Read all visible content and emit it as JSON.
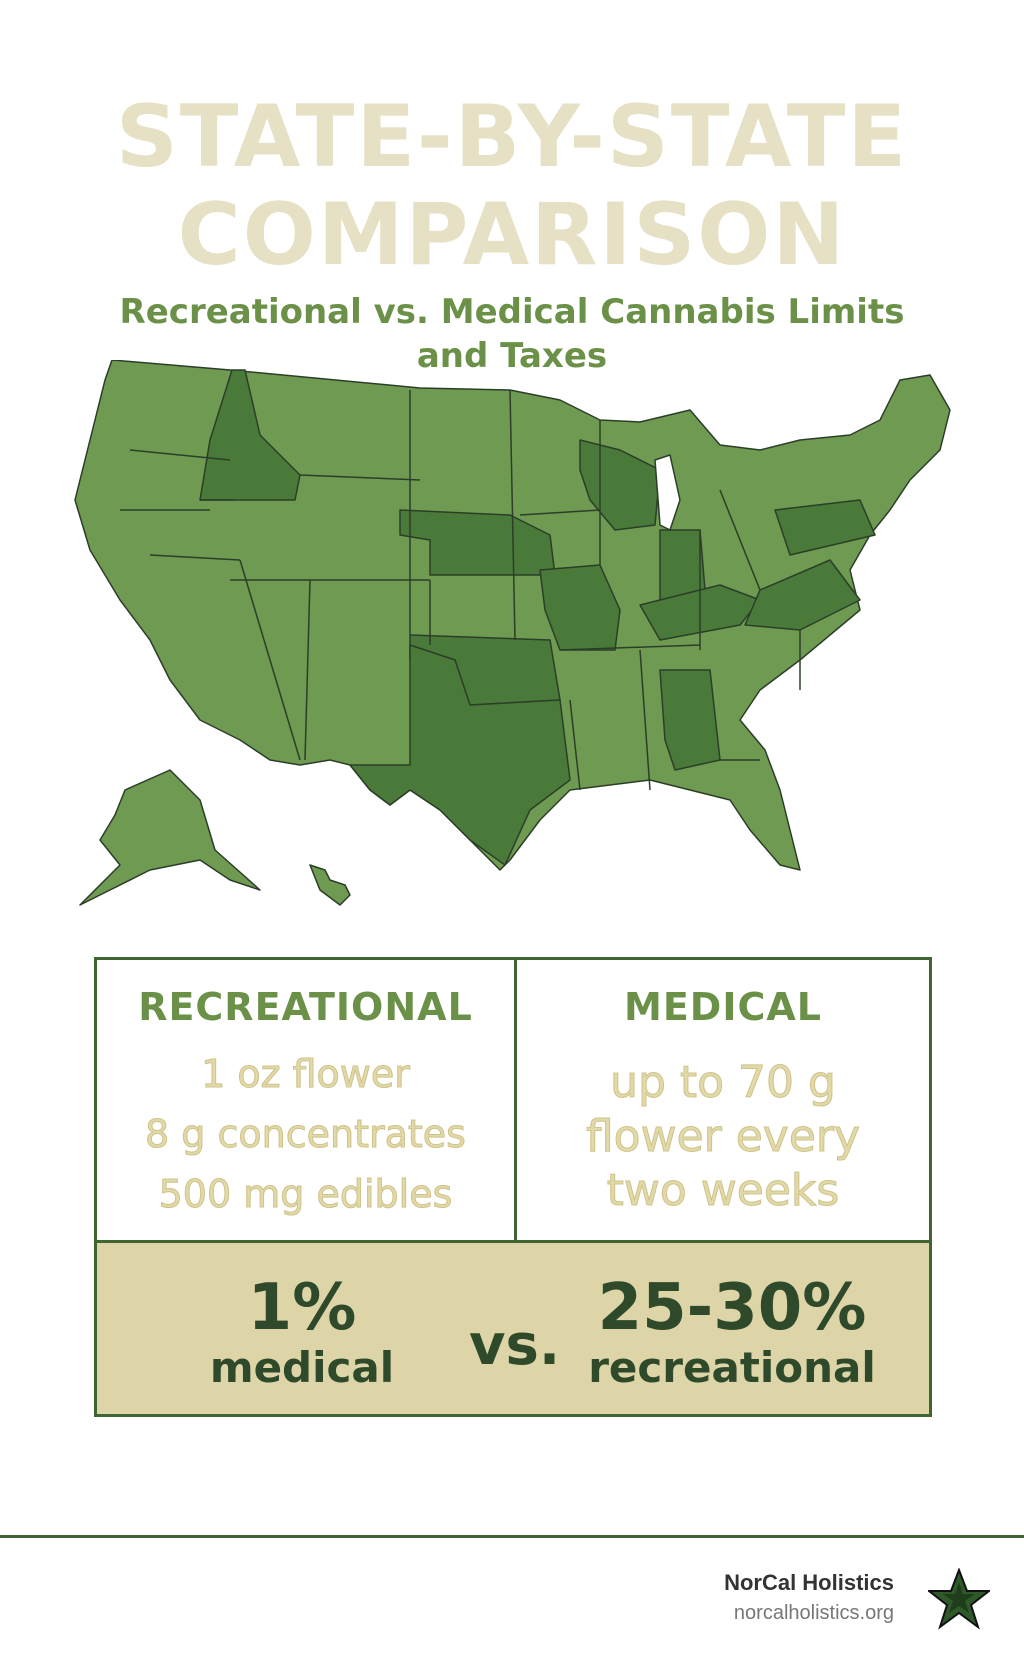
{
  "header": {
    "title_line1": "STATE-BY-STATE",
    "title_line2": "COMPARISON",
    "subtitle_line1": "Recreational vs. Medical Cannabis Limits",
    "subtitle_line2": "and Taxes"
  },
  "map": {
    "icon": "us-map-icon",
    "colors": {
      "light": "#6e9a52",
      "dark": "#4a7a3a",
      "border": "#2c3e28"
    }
  },
  "limits": {
    "recreational": {
      "heading": "RECREATIONAL",
      "items": [
        "1 oz flower",
        "8 g concentrates",
        "500 mg edibles"
      ]
    },
    "medical": {
      "heading": "MEDICAL",
      "text": "up to 70 g flower every two weeks"
    }
  },
  "taxes": {
    "medical_rate": "1%",
    "medical_label": "medical",
    "vs": "vs.",
    "recreational_rate": "25-30%",
    "recreational_label": "recreational"
  },
  "footer": {
    "brand": "NorCal Holistics",
    "url": "norcalholistics.org",
    "logo_icon": "star-icon"
  },
  "colors": {
    "title": "#e6e0c4",
    "accent_green": "#6b9148",
    "dark_green": "#2e4a2a",
    "band": "#ddd4a8"
  }
}
